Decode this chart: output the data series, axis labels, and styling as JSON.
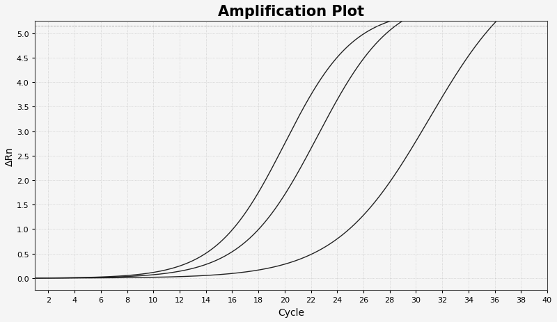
{
  "title": "Amplification Plot",
  "xlabel": "Cycle",
  "ylabel": "ΔRn",
  "xlim": [
    1,
    40
  ],
  "ylim": [
    -0.25,
    5.25
  ],
  "xticks": [
    2,
    4,
    6,
    8,
    10,
    12,
    14,
    16,
    18,
    20,
    22,
    24,
    26,
    28,
    30,
    32,
    34,
    36,
    38,
    40
  ],
  "yticks": [
    0.0,
    0.5,
    1.0,
    1.5,
    2.0,
    2.5,
    3.0,
    3.5,
    4.0,
    4.5,
    5.0
  ],
  "background_color": "#f5f5f5",
  "grid_color": "#aaaaaa",
  "line_color": "#222222",
  "curves": [
    {
      "midpoint": 20.0,
      "k": 0.38,
      "L": 5.5
    },
    {
      "midpoint": 22.5,
      "k": 0.35,
      "L": 5.8
    },
    {
      "midpoint": 31.0,
      "k": 0.28,
      "L": 6.5
    }
  ],
  "dashed_line_y": 5.15,
  "title_fontsize": 15,
  "title_fontweight": "bold",
  "axis_fontsize": 10,
  "tick_fontsize": 8,
  "figsize": [
    8.0,
    4.64
  ],
  "dpi": 100
}
